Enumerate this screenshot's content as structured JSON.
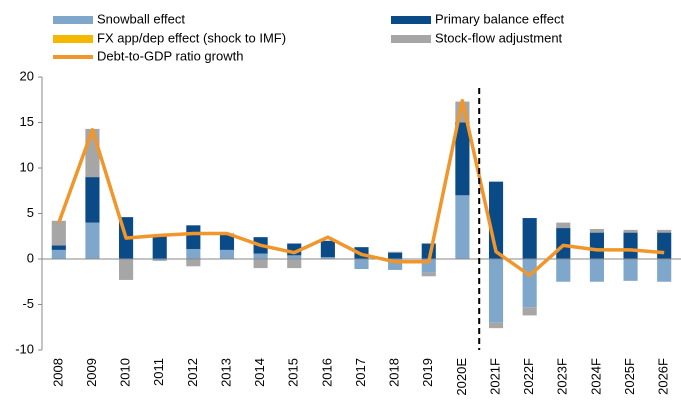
{
  "chart_data": {
    "type": "stacked-bar-line",
    "categories": [
      "2008",
      "2009",
      "2010",
      "2011",
      "2012",
      "2013",
      "2014",
      "2015",
      "2016",
      "2017",
      "2018",
      "2019",
      "2020E",
      "2021F",
      "2022F",
      "2023F",
      "2024F",
      "2025F",
      "2026F"
    ],
    "series": [
      {
        "name": "Snowball effect",
        "color": "#7fa7cc",
        "values": [
          1,
          4,
          0,
          -0.2,
          1.1,
          1,
          0.6,
          0.4,
          0.2,
          -1.1,
          -1.2,
          -1.5,
          7,
          -7,
          -5.3,
          -2.5,
          -2.5,
          -2.4,
          -2.5
        ]
      },
      {
        "name": "Primary balance effect",
        "color": "#0a4a86",
        "values": [
          0.5,
          5,
          4.6,
          2.5,
          2.6,
          1.8,
          1.8,
          1.3,
          1.8,
          1.3,
          0.7,
          1.7,
          8,
          8.5,
          4.5,
          3.4,
          2.9,
          2.9,
          2.9
        ]
      },
      {
        "name": "FX app/dep effect (shock to IMF)",
        "color": "#f5b800",
        "values": [
          0,
          0,
          0,
          0,
          0,
          0,
          0,
          0,
          0,
          0,
          0,
          0,
          0,
          0,
          0,
          0,
          0,
          0,
          0
        ]
      },
      {
        "name": "Stock-flow adjustment",
        "color": "#a6a6a6",
        "values": [
          2.7,
          5.3,
          -2.3,
          0,
          -0.8,
          0,
          -1,
          -1,
          0,
          0,
          0.1,
          -0.4,
          2.3,
          -0.6,
          -0.9,
          0.6,
          0.4,
          0.3,
          0.3
        ]
      }
    ],
    "line": {
      "name": "Debt-to-GDP ratio growth",
      "color": "#f0962a",
      "values": [
        4,
        14.2,
        2.3,
        2.6,
        2.8,
        2.8,
        1.5,
        0.7,
        2.4,
        0.5,
        -0.3,
        -0.3,
        17.4,
        0.8,
        -1.8,
        1.5,
        1.0,
        1.0,
        0.7
      ]
    },
    "forecast_start": "2021F",
    "ylim": [
      -10,
      20
    ],
    "yticks": [
      -10,
      -5,
      0,
      5,
      10,
      15,
      20
    ],
    "grid": false
  }
}
